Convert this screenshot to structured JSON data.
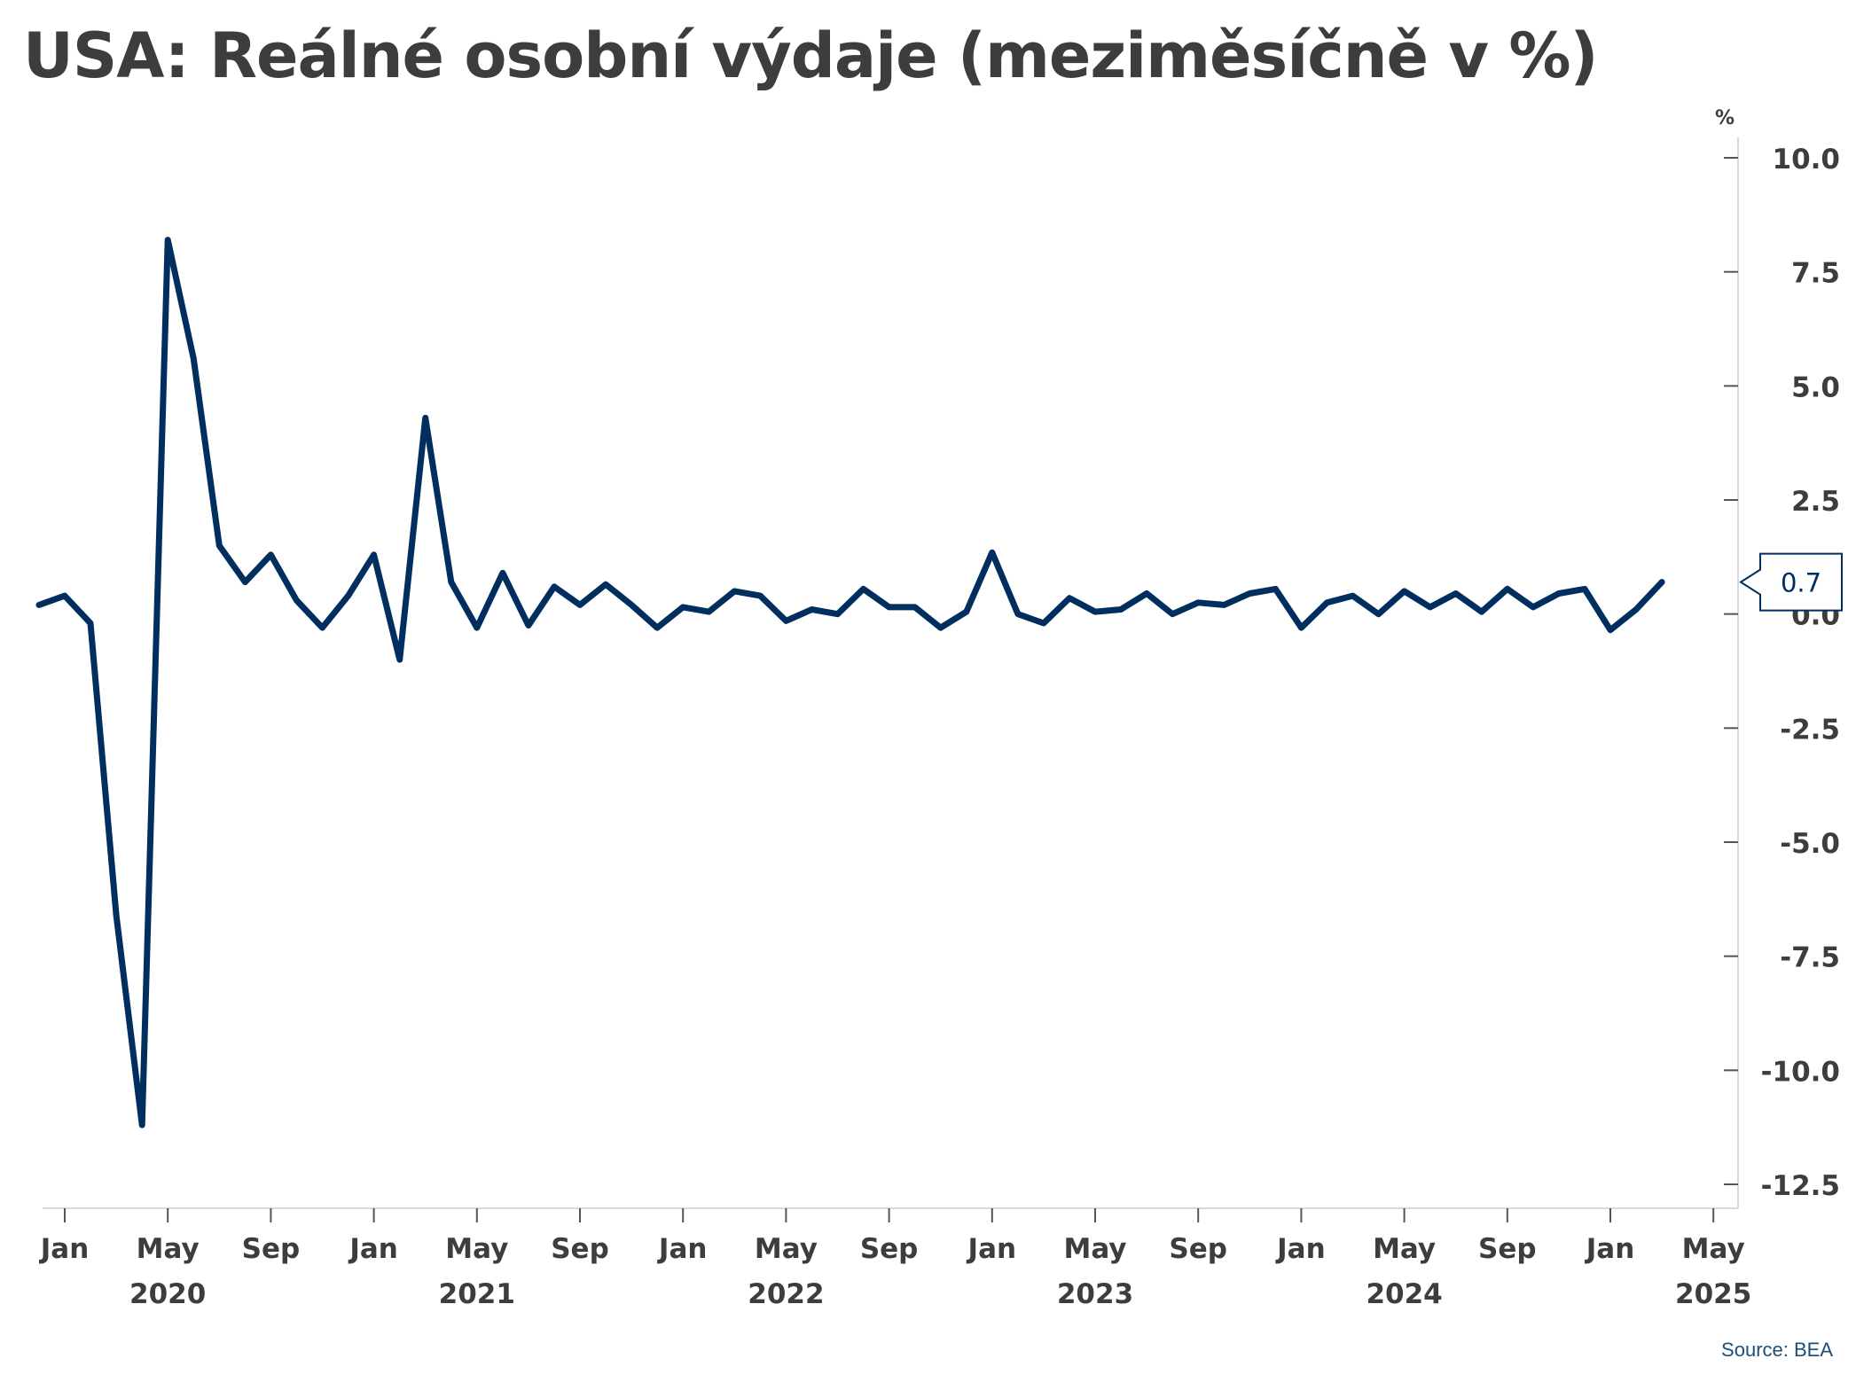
{
  "title": "USA: Reálné osobní výdaje (meziměsíčně v %)",
  "source": "Source: BEA",
  "colors": {
    "line": "#002f5f",
    "text": "#3d3d3d",
    "axis": "#d9d9d9",
    "source": "#1f4e79"
  },
  "chart_data": {
    "type": "line",
    "unit_label": "%",
    "y_axis_position": "right",
    "ylim": [
      -12.5,
      10.0
    ],
    "y_ticks": [
      "10.0",
      "7.5",
      "5.0",
      "2.5",
      "0.0",
      "-2.5",
      "-5.0",
      "-7.5",
      "-10.0",
      "-12.5"
    ],
    "x_tick_labels": [
      "Jan",
      "May",
      "Sep",
      "Jan",
      "May",
      "Sep",
      "Jan",
      "May",
      "Sep",
      "Jan",
      "May",
      "Sep",
      "Jan",
      "May",
      "Sep",
      "Jan",
      "May"
    ],
    "x_year_labels": [
      "2020",
      "2021",
      "2022",
      "2023",
      "2024",
      "2025"
    ],
    "grid": false,
    "last_value_label": "0.7",
    "series": [
      {
        "start": "2019-12",
        "values": [
          0.2,
          0.4,
          -0.2,
          -6.6,
          -11.2,
          8.2,
          5.6,
          1.5,
          0.7,
          1.3,
          0.3,
          -0.3,
          0.4,
          1.3,
          -1.0,
          4.3,
          0.7,
          -0.3,
          0.9,
          -0.25,
          0.6,
          0.2,
          0.65,
          0.2,
          -0.3,
          0.15,
          0.05,
          0.5,
          0.4,
          -0.15,
          0.1,
          0.0,
          0.55,
          0.15,
          0.15,
          -0.3,
          0.05,
          1.35,
          0.0,
          -0.2,
          0.35,
          0.05,
          0.1,
          0.45,
          0.0,
          0.25,
          0.2,
          0.45,
          0.55,
          -0.3,
          0.25,
          0.4,
          0.0,
          0.5,
          0.15,
          0.45,
          0.05,
          0.55,
          0.15,
          0.45,
          0.55,
          -0.35,
          0.1,
          0.7
        ]
      }
    ]
  }
}
